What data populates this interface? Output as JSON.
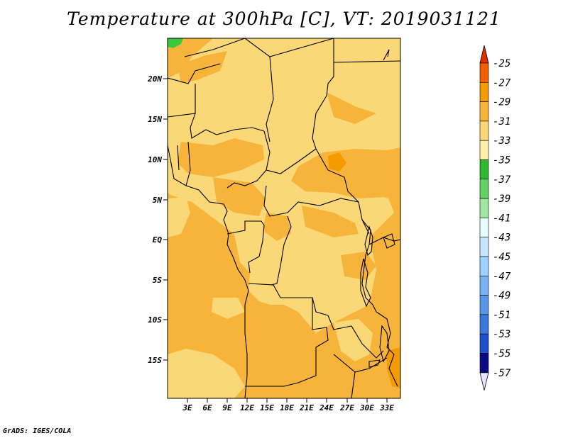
{
  "title": "Temperature at 300hPa [C], VT: 2019031121",
  "credit": "GrADS: IGES/COLA",
  "map": {
    "lat_labels": [
      "20N",
      "15N",
      "10N",
      "5N",
      "EQ",
      "5S",
      "10S",
      "15S"
    ],
    "lon_labels": [
      "3E",
      "6E",
      "9E",
      "12E",
      "15E",
      "18E",
      "21E",
      "24E",
      "27E",
      "30E",
      "33E"
    ]
  },
  "colorbar": {
    "labels": [
      "-25",
      "-27",
      "-29",
      "-31",
      "-33",
      "-35",
      "-37",
      "-39",
      "-41",
      "-43",
      "-45",
      "-47",
      "-49",
      "-51",
      "-53",
      "-55",
      "-57"
    ],
    "colors": [
      "#e03000",
      "#f06000",
      "#f59a00",
      "#f7b43a",
      "#fad878",
      "#fff0a8",
      "#30b830",
      "#64d264",
      "#a0e6a0",
      "#e6ffff",
      "#c8e6ff",
      "#a0d2ff",
      "#78b4f5",
      "#5a96e6",
      "#3c78dc",
      "#1e50c8",
      "#0a0a82",
      "#0a0a82"
    ],
    "top_color": "#e03000",
    "bottom_color": "#e6e6ff"
  },
  "palette": {
    "light": "#fad878",
    "mid": "#f7b43a",
    "dark": "#f59a00",
    "green": "#3cc83c"
  }
}
